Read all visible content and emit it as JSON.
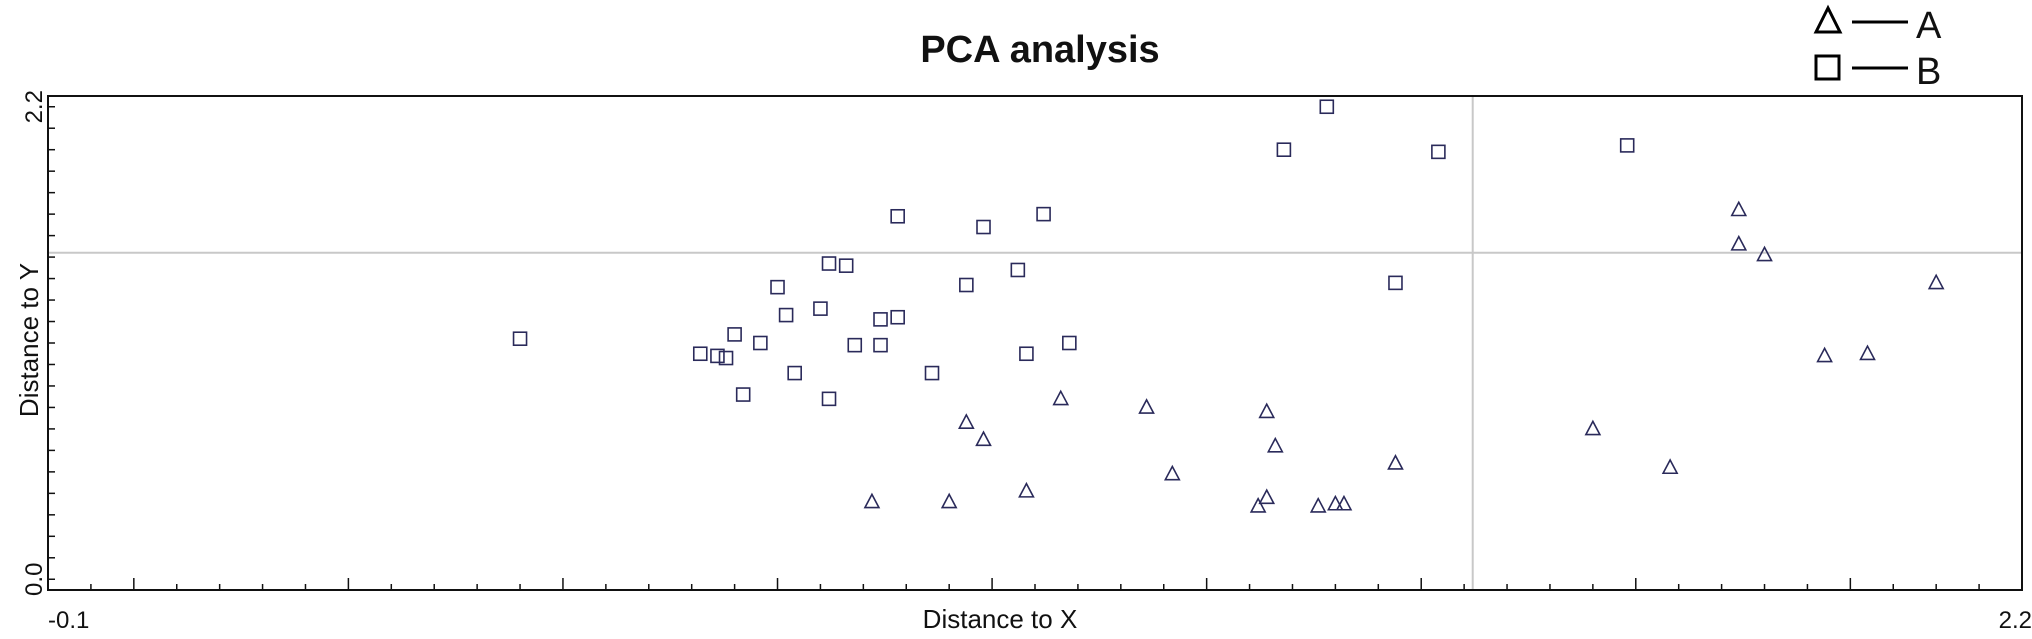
{
  "chart_data": {
    "type": "scatter",
    "title": "PCA analysis",
    "xlabel": "Distance to X",
    "ylabel": "Distance to Y",
    "xlim": [
      -0.1,
      2.2
    ],
    "ylim": [
      -0.05,
      2.25
    ],
    "x_ticks": [
      {
        "value": -0.1,
        "label": "-0.1"
      },
      {
        "value": 2.2,
        "label": "2.2"
      }
    ],
    "y_ticks": [
      {
        "value": 0.0,
        "label": "0.0"
      },
      {
        "value": 2.2,
        "label": "2.2"
      }
    ],
    "reference_lines": {
      "x": 1.56,
      "y": 1.52
    },
    "grid": false,
    "legend_position": "top-right",
    "series": [
      {
        "name": "A",
        "marker": "triangle",
        "color": "#2a2a5a",
        "points": [
          {
            "x": 0.86,
            "y": 0.36
          },
          {
            "x": 0.95,
            "y": 0.36
          },
          {
            "x": 1.04,
            "y": 0.41
          },
          {
            "x": 0.99,
            "y": 0.65
          },
          {
            "x": 0.97,
            "y": 0.73
          },
          {
            "x": 1.21,
            "y": 0.49
          },
          {
            "x": 1.18,
            "y": 0.8
          },
          {
            "x": 1.31,
            "y": 0.34
          },
          {
            "x": 1.32,
            "y": 0.38
          },
          {
            "x": 1.33,
            "y": 0.62
          },
          {
            "x": 1.32,
            "y": 0.78
          },
          {
            "x": 1.38,
            "y": 0.34
          },
          {
            "x": 1.4,
            "y": 0.35
          },
          {
            "x": 1.41,
            "y": 0.35
          },
          {
            "x": 1.47,
            "y": 0.54
          },
          {
            "x": 1.7,
            "y": 0.7
          },
          {
            "x": 1.79,
            "y": 0.52
          },
          {
            "x": 1.87,
            "y": 1.72
          },
          {
            "x": 1.87,
            "y": 1.56
          },
          {
            "x": 1.9,
            "y": 1.51
          },
          {
            "x": 1.97,
            "y": 1.04
          },
          {
            "x": 2.02,
            "y": 1.05
          },
          {
            "x": 2.1,
            "y": 1.38
          },
          {
            "x": 1.08,
            "y": 0.84
          }
        ]
      },
      {
        "name": "B",
        "marker": "square",
        "color": "#2a2a5a",
        "points": [
          {
            "x": 0.45,
            "y": 1.12
          },
          {
            "x": 0.66,
            "y": 1.05
          },
          {
            "x": 0.68,
            "y": 1.04
          },
          {
            "x": 0.69,
            "y": 1.03
          },
          {
            "x": 0.7,
            "y": 1.14
          },
          {
            "x": 0.71,
            "y": 0.86
          },
          {
            "x": 0.73,
            "y": 1.1
          },
          {
            "x": 0.75,
            "y": 1.36
          },
          {
            "x": 0.76,
            "y": 1.23
          },
          {
            "x": 0.77,
            "y": 0.96
          },
          {
            "x": 0.8,
            "y": 1.26
          },
          {
            "x": 0.81,
            "y": 0.84
          },
          {
            "x": 0.81,
            "y": 1.47
          },
          {
            "x": 0.83,
            "y": 1.46
          },
          {
            "x": 0.84,
            "y": 1.09
          },
          {
            "x": 0.87,
            "y": 1.09
          },
          {
            "x": 0.87,
            "y": 1.21
          },
          {
            "x": 0.89,
            "y": 1.69
          },
          {
            "x": 0.89,
            "y": 1.22
          },
          {
            "x": 0.93,
            "y": 0.96
          },
          {
            "x": 0.97,
            "y": 1.37
          },
          {
            "x": 0.99,
            "y": 1.64
          },
          {
            "x": 1.03,
            "y": 1.44
          },
          {
            "x": 1.04,
            "y": 1.05
          },
          {
            "x": 1.06,
            "y": 1.7
          },
          {
            "x": 1.09,
            "y": 1.1
          },
          {
            "x": 1.34,
            "y": 2.0
          },
          {
            "x": 1.39,
            "y": 2.2
          },
          {
            "x": 1.47,
            "y": 1.38
          },
          {
            "x": 1.52,
            "y": 1.99
          },
          {
            "x": 1.74,
            "y": 2.02
          }
        ]
      }
    ]
  }
}
